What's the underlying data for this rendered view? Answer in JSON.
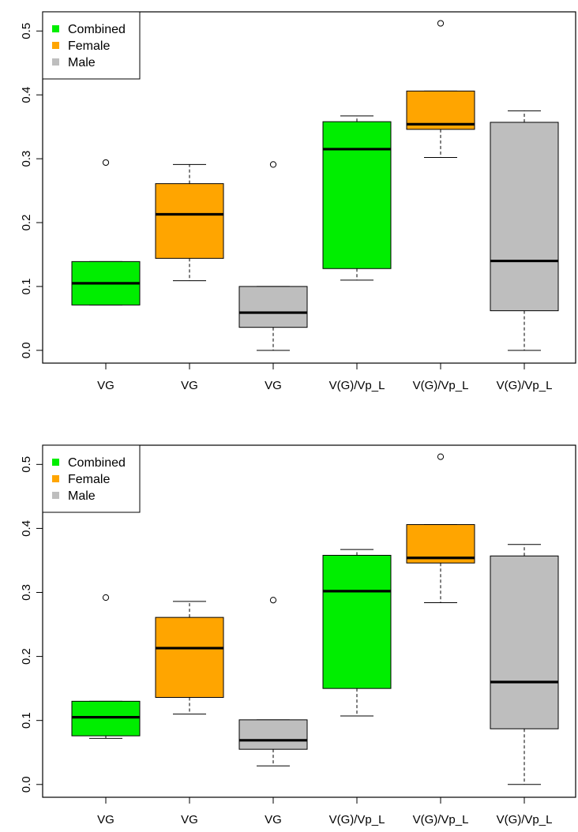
{
  "legend": [
    {
      "label": "Combined",
      "color": "#00ee00"
    },
    {
      "label": "Female",
      "color": "#ffa500"
    },
    {
      "label": "Male",
      "color": "#bebebe"
    }
  ],
  "chart_data": [
    {
      "type": "boxplot",
      "legend_position": "top-left",
      "categories": [
        "VG",
        "VG",
        "VG",
        "V(G)/Vp_L",
        "V(G)/Vp_L",
        "V(G)/Vp_L"
      ],
      "ylim": [
        -0.02,
        0.53
      ],
      "yticks": [
        0.0,
        0.1,
        0.2,
        0.3,
        0.4,
        0.5
      ],
      "ytick_labels": [
        "0.0",
        "0.1",
        "0.2",
        "0.3",
        "0.4",
        "0.5"
      ],
      "boxes": [
        {
          "group": "Combined",
          "whisker_low": 0.071,
          "q1": 0.071,
          "median": 0.105,
          "q3": 0.139,
          "whisker_high": 0.139,
          "outliers": [
            0.294
          ]
        },
        {
          "group": "Female",
          "whisker_low": 0.109,
          "q1": 0.144,
          "median": 0.213,
          "q3": 0.261,
          "whisker_high": 0.291,
          "outliers": []
        },
        {
          "group": "Male",
          "whisker_low": 0.0,
          "q1": 0.036,
          "median": 0.059,
          "q3": 0.1,
          "whisker_high": 0.1,
          "outliers": [
            0.291
          ]
        },
        {
          "group": "Combined",
          "whisker_low": 0.11,
          "q1": 0.128,
          "median": 0.315,
          "q3": 0.358,
          "whisker_high": 0.367,
          "outliers": []
        },
        {
          "group": "Female",
          "whisker_low": 0.302,
          "q1": 0.346,
          "median": 0.354,
          "q3": 0.406,
          "whisker_high": 0.406,
          "outliers": [
            0.512
          ]
        },
        {
          "group": "Male",
          "whisker_low": 0.0,
          "q1": 0.062,
          "median": 0.14,
          "q3": 0.357,
          "whisker_high": 0.375,
          "outliers": []
        }
      ]
    },
    {
      "type": "boxplot",
      "legend_position": "top-left",
      "categories": [
        "VG",
        "VG",
        "VG",
        "V(G)/Vp_L",
        "V(G)/Vp_L",
        "V(G)/Vp_L"
      ],
      "ylim": [
        -0.02,
        0.53
      ],
      "yticks": [
        0.0,
        0.1,
        0.2,
        0.3,
        0.4,
        0.5
      ],
      "ytick_labels": [
        "0.0",
        "0.1",
        "0.2",
        "0.3",
        "0.4",
        "0.5"
      ],
      "boxes": [
        {
          "group": "Combined",
          "whisker_low": 0.072,
          "q1": 0.076,
          "median": 0.105,
          "q3": 0.13,
          "whisker_high": 0.13,
          "outliers": [
            0.292
          ]
        },
        {
          "group": "Female",
          "whisker_low": 0.11,
          "q1": 0.136,
          "median": 0.213,
          "q3": 0.261,
          "whisker_high": 0.286,
          "outliers": []
        },
        {
          "group": "Male",
          "whisker_low": 0.029,
          "q1": 0.055,
          "median": 0.069,
          "q3": 0.101,
          "whisker_high": 0.101,
          "outliers": [
            0.288
          ]
        },
        {
          "group": "Combined",
          "whisker_low": 0.107,
          "q1": 0.15,
          "median": 0.302,
          "q3": 0.358,
          "whisker_high": 0.367,
          "outliers": []
        },
        {
          "group": "Female",
          "whisker_low": 0.284,
          "q1": 0.346,
          "median": 0.354,
          "q3": 0.406,
          "whisker_high": 0.406,
          "outliers": [
            0.512
          ]
        },
        {
          "group": "Male",
          "whisker_low": 0.0,
          "q1": 0.087,
          "median": 0.16,
          "q3": 0.357,
          "whisker_high": 0.375,
          "outliers": []
        }
      ]
    }
  ]
}
